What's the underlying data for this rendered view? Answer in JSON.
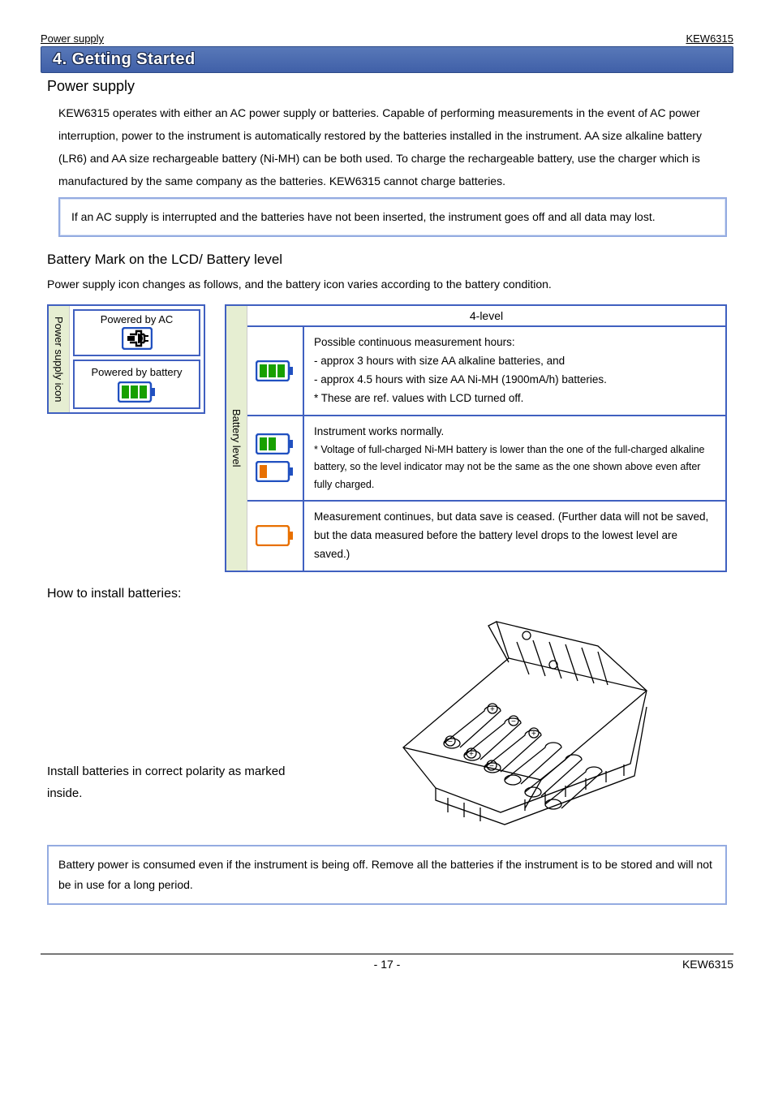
{
  "header": {
    "left": "Power supply",
    "right": "KEW6315"
  },
  "section_banner": "4. Getting Started",
  "h_power_supply": "Power supply",
  "p_intro": "KEW6315 operates with either an AC power supply or batteries. Capable of performing measurements in the event of AC power interruption, power to the instrument is automatically restored by the batteries installed in the instrument. AA size alkaline battery (LR6) and AA size rechargeable battery (Ni-MH) can be both used. To charge the rechargeable battery, use the charger which is manufactured by the same company as the batteries. KEW6315 cannot charge batteries.",
  "note_ac": "If an AC supply is interrupted and the batteries have not been inserted, the instrument goes off and all data may lost.",
  "h_battery_mark": "Battery Mark on the LCD/ Battery level",
  "p_battery_mark": "Power supply icon changes as follows, and the battery icon varies according to the battery condition.",
  "power_supply_box": {
    "label": "Power supply icon",
    "ac": "Powered by AC",
    "batt": "Powered by battery"
  },
  "battery_level_box": {
    "label": "Battery level",
    "head": "4-level",
    "rows": [
      {
        "icon": {
          "bars": 3,
          "fill": "#18a000",
          "border": "#2050c0"
        },
        "text": "Possible continuous measurement hours:\n- approx 3 hours with size AA alkaline batteries, and\n- approx 4.5 hours with   size AA Ni-MH (1900mA/h) batteries.\n* These are ref. values with LCD turned off."
      },
      {
        "icons": [
          {
            "bars": 2,
            "fill": "#18a000",
            "border": "#2050c0"
          },
          {
            "bars": 1,
            "fill": "#e87000",
            "border": "#2050c0"
          }
        ],
        "text": "Instrument works normally.",
        "small": "* Voltage of full-charged Ni-MH battery is lower than the one of the full-charged alkaline battery, so the level indicator may not be the same as the one shown above even after fully charged."
      },
      {
        "icon": {
          "bars": 0,
          "fill": "#e87000",
          "border": "#2050c0"
        },
        "text": "Measurement continues, but data save is ceased. (Further data will not be saved, but the data measured before the battery level drops to the lowest level are saved.)"
      }
    ]
  },
  "h_howto": "How to install batteries:",
  "install_text": "Install batteries in correct polarity as marked inside.",
  "note_bottom": "Battery power is consumed even if the instrument is being off. Remove all the batteries if the instrument is to be stored and will not be in use for a long period.",
  "footer": {
    "page": "- 17 -",
    "right": "KEW6315"
  },
  "colors": {
    "banner_bg_top": "#5878b8",
    "banner_bg_bot": "#4060a8",
    "box_border": "#4060c0",
    "vlabel_bg": "#e6eed2",
    "info_border": "#94abe1",
    "battery_green": "#18a000",
    "battery_orange": "#e87000"
  }
}
